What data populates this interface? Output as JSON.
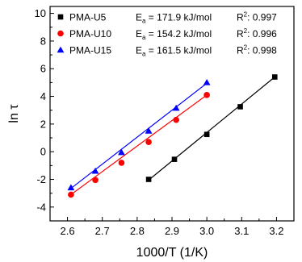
{
  "chart_data": {
    "type": "scatter",
    "xlabel": "1000/T (1/K)",
    "ylabel_main": "ln ",
    "ylabel_symbol": "τ",
    "xlim": [
      2.55,
      3.25
    ],
    "ylim": [
      -5,
      10.5
    ],
    "xticks": [
      2.6,
      2.7,
      2.8,
      2.9,
      3.0,
      3.1,
      3.2
    ],
    "yticks": [
      -4,
      -2,
      0,
      2,
      4,
      6,
      8,
      10
    ],
    "grid": false,
    "legend_position": "top",
    "series": [
      {
        "name": "PMA-U5",
        "color": "#000000",
        "marker": "square",
        "ea_prefix": "E",
        "ea_sub": "a",
        "ea_value": " = 171.9 kJ/mol",
        "r2_prefix": "R",
        "r2_sup": "2",
        "r2_value": ": 0.997",
        "x": [
          2.833,
          2.907,
          3.0,
          3.096,
          3.195
        ],
        "y": [
          -2.0,
          -0.55,
          1.25,
          3.25,
          5.4
        ],
        "fit_x": [
          2.833,
          3.195
        ],
        "fit_y": [
          -2.05,
          5.4
        ]
      },
      {
        "name": "PMA-U10",
        "color": "#ff0000",
        "marker": "circle",
        "ea_prefix": "E",
        "ea_sub": "a",
        "ea_value": " = 154.2 kJ/mol",
        "r2_prefix": "R",
        "r2_sup": "2",
        "r2_value": ": 0.996",
        "x": [
          2.61,
          2.68,
          2.755,
          2.833,
          2.912,
          3.0
        ],
        "y": [
          -3.1,
          -2.05,
          -0.8,
          0.7,
          2.3,
          4.1
        ],
        "fit_x": [
          2.61,
          3.0
        ],
        "fit_y": [
          -3.1,
          4.1
        ]
      },
      {
        "name": "PMA-U15",
        "color": "#0000ff",
        "marker": "triangle",
        "ea_prefix": "E",
        "ea_sub": "a",
        "ea_value": " = 161.5 kJ/mol",
        "r2_prefix": "R",
        "r2_sup": "2",
        "r2_value": ": 0.998",
        "x": [
          2.61,
          2.68,
          2.755,
          2.833,
          2.912,
          3.0
        ],
        "y": [
          -2.6,
          -1.4,
          -0.05,
          1.5,
          3.15,
          5.0
        ],
        "fit_x": [
          2.61,
          3.0
        ],
        "fit_y": [
          -2.65,
          4.95
        ]
      }
    ]
  }
}
